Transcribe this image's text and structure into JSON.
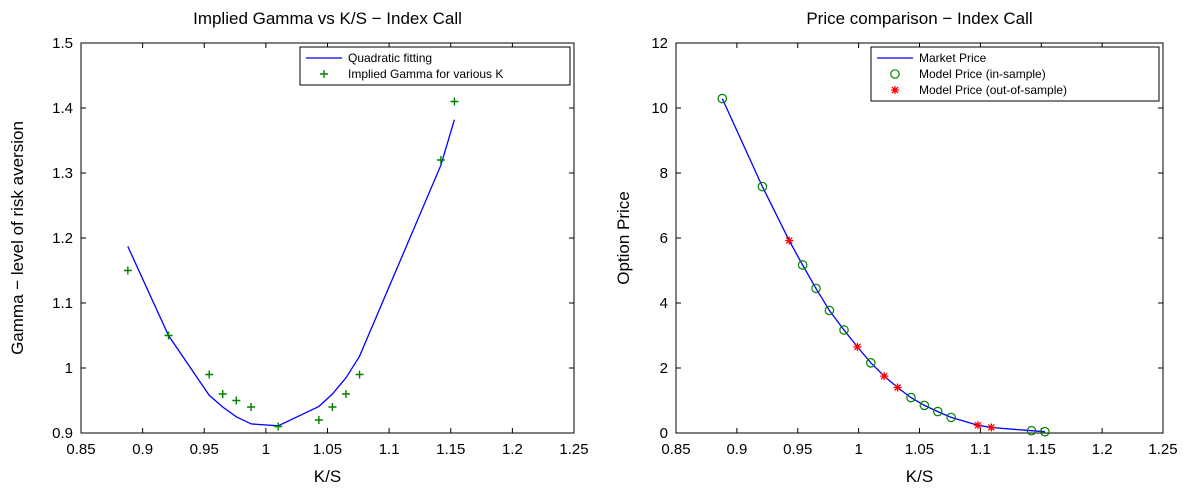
{
  "chart_data": [
    {
      "type": "line",
      "title": "Implied Gamma vs K/S − Index Call",
      "xlabel": "K/S",
      "ylabel": "Gamma − level of risk aversion",
      "xlim": [
        0.85,
        1.25
      ],
      "ylim": [
        0.9,
        1.5
      ],
      "xticks": [
        "0.85",
        "0.9",
        "0.95",
        "1",
        "1.05",
        "1.1",
        "1.15",
        "1.2",
        "1.25"
      ],
      "yticks": [
        "0.9",
        "1",
        "1.1",
        "1.2",
        "1.3",
        "1.4",
        "1.5"
      ],
      "grid": false,
      "legend_position": "top-right",
      "series": [
        {
          "name": "Quadratic fitting",
          "kind": "line",
          "color": "#0000ff",
          "x": [
            0.888,
            0.921,
            0.954,
            0.965,
            0.976,
            0.988,
            1.01,
            1.043,
            1.054,
            1.065,
            1.076,
            1.142,
            1.153
          ],
          "y": [
            1.187,
            1.05,
            0.958,
            0.94,
            0.925,
            0.914,
            0.911,
            0.941,
            0.96,
            0.985,
            1.018,
            1.312,
            1.382
          ]
        },
        {
          "name": "Implied Gamma for various K",
          "kind": "scatter",
          "marker": "+",
          "color": "#008000",
          "x": [
            0.888,
            0.921,
            0.954,
            0.965,
            0.976,
            0.988,
            1.01,
            1.043,
            1.054,
            1.065,
            1.076,
            1.142,
            1.153
          ],
          "y": [
            1.15,
            1.05,
            0.99,
            0.96,
            0.95,
            0.94,
            0.91,
            0.92,
            0.94,
            0.96,
            0.99,
            1.32,
            1.41
          ]
        }
      ]
    },
    {
      "type": "line",
      "title": "Price comparison − Index Call",
      "xlabel": "K/S",
      "ylabel": "Option Price",
      "xlim": [
        0.85,
        1.25
      ],
      "ylim": [
        0,
        12
      ],
      "xticks": [
        "0.85",
        "0.9",
        "0.95",
        "1",
        "1.05",
        "1.1",
        "1.15",
        "1.2",
        "1.25"
      ],
      "yticks": [
        "0",
        "2",
        "4",
        "6",
        "8",
        "10",
        "12"
      ],
      "grid": false,
      "legend_position": "top-right",
      "series": [
        {
          "name": "Market Price",
          "kind": "line",
          "color": "#0000ff",
          "x": [
            0.888,
            0.921,
            0.943,
            0.954,
            0.965,
            0.976,
            0.988,
            0.999,
            1.01,
            1.021,
            1.032,
            1.043,
            1.054,
            1.065,
            1.076,
            1.098,
            1.109,
            1.142,
            1.153
          ],
          "y": [
            10.29,
            7.58,
            5.92,
            5.17,
            4.45,
            3.77,
            3.17,
            2.65,
            2.16,
            1.75,
            1.4,
            1.09,
            0.85,
            0.66,
            0.48,
            0.24,
            0.17,
            0.07,
            0.04
          ]
        },
        {
          "name": "Model Price (in-sample)",
          "kind": "scatter",
          "marker": "o",
          "color": "#008000",
          "x": [
            0.888,
            0.921,
            0.954,
            0.965,
            0.976,
            0.988,
            1.01,
            1.043,
            1.054,
            1.065,
            1.076,
            1.142,
            1.153
          ],
          "y": [
            10.29,
            7.58,
            5.17,
            4.45,
            3.77,
            3.17,
            2.16,
            1.09,
            0.85,
            0.66,
            0.48,
            0.07,
            0.04
          ]
        },
        {
          "name": "Model Price (out-of-sample)",
          "kind": "scatter",
          "marker": "*",
          "color": "#ff0000",
          "x": [
            0.943,
            0.999,
            1.021,
            1.032,
            1.098,
            1.109
          ],
          "y": [
            5.92,
            2.65,
            1.75,
            1.4,
            0.24,
            0.17
          ]
        }
      ]
    }
  ]
}
